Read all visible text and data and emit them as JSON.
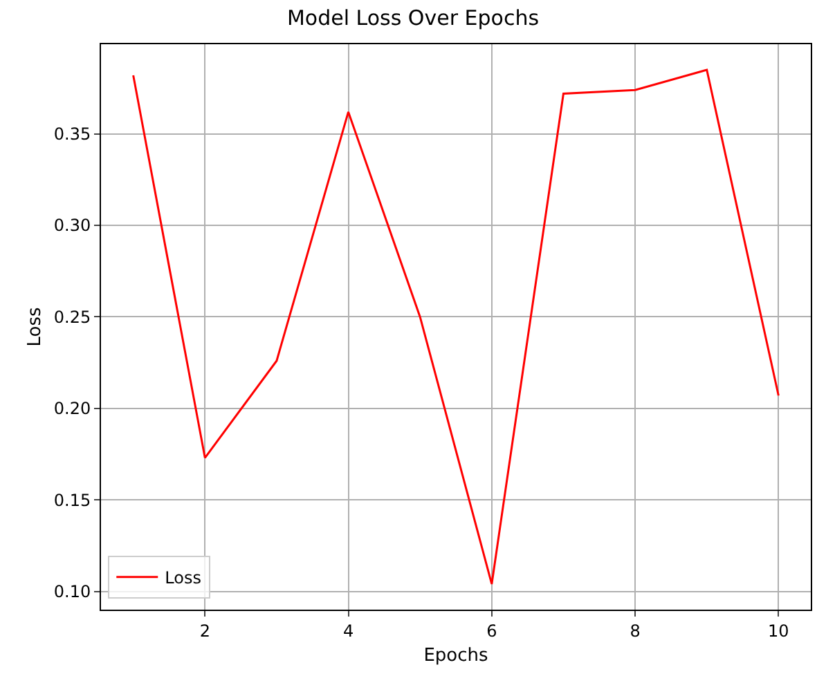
{
  "chart_data": {
    "type": "line",
    "title": "Model Loss Over Epochs",
    "xlabel": "Epochs",
    "ylabel": "Loss",
    "x": [
      1,
      2,
      3,
      4,
      5,
      6,
      7,
      8,
      9,
      10
    ],
    "series": [
      {
        "name": "Loss",
        "color": "#ff0000",
        "values": [
          0.382,
          0.173,
          0.226,
          0.362,
          0.25,
          0.104,
          0.372,
          0.374,
          0.385,
          0.207
        ]
      }
    ],
    "xlim": [
      0.55,
      10.45
    ],
    "xticks": [
      2,
      4,
      6,
      8,
      10
    ],
    "ylim": [
      0.09,
      0.399
    ],
    "yticks": [
      {
        "value": 0.1,
        "label": "0.10"
      },
      0.15,
      {
        "value": 0.2,
        "label": "0.20"
      },
      0.25,
      {
        "value": 0.3,
        "label": "0.30"
      },
      0.35
    ],
    "grid": true,
    "legend": "bottom left",
    "marker": "none",
    "line_style": "solid"
  }
}
